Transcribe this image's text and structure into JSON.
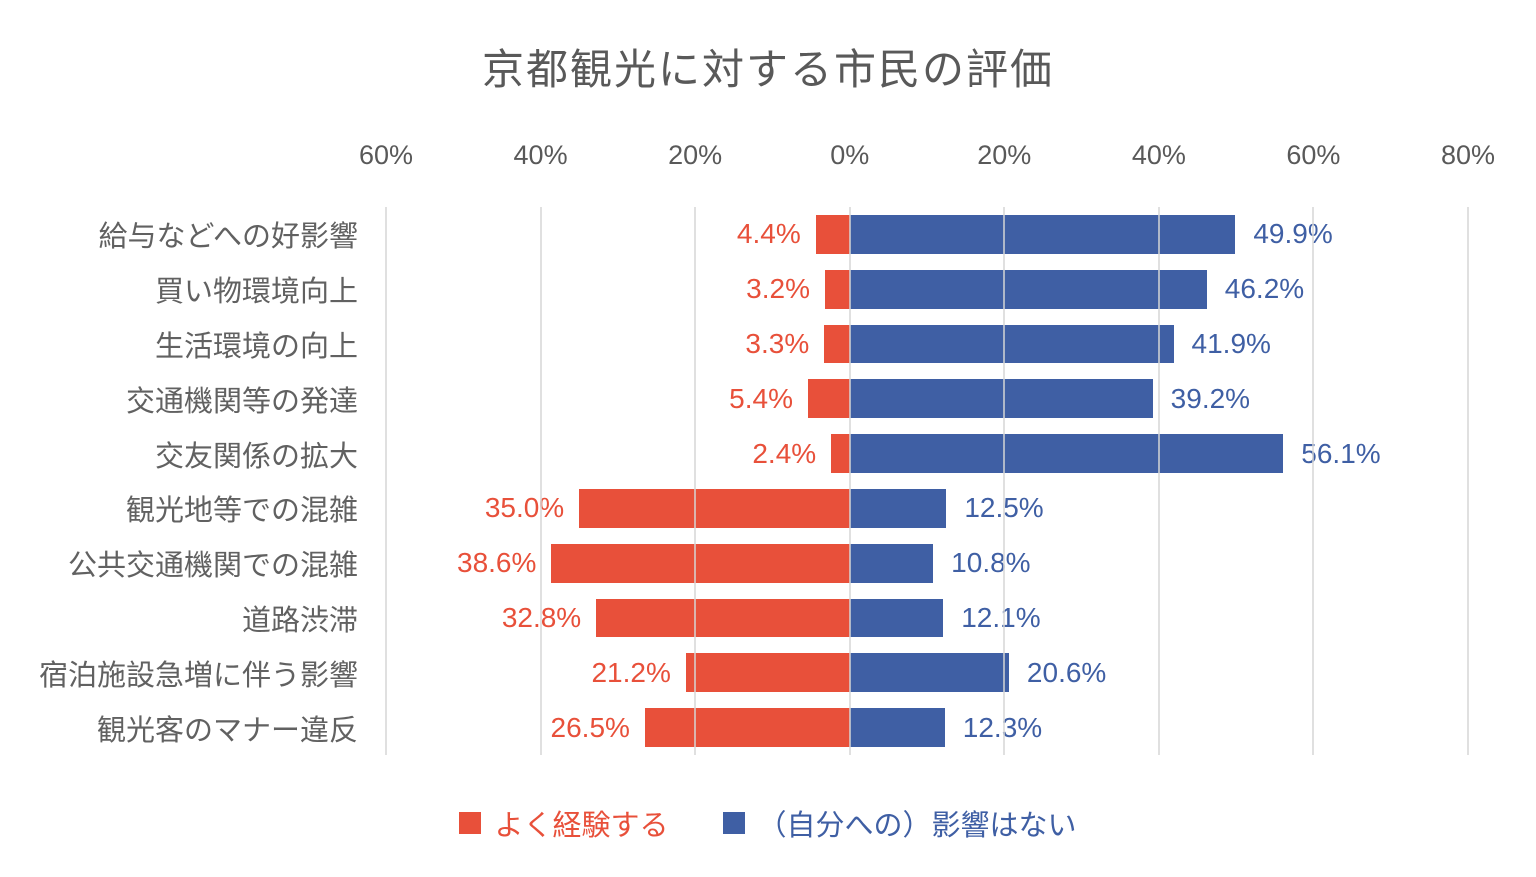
{
  "chart": {
    "title": "京都観光に対する市民の評価",
    "colors": {
      "experience": "#e8503a",
      "no_impact": "#3f5fa4",
      "title_text": "#595959",
      "axis_text": "#595959",
      "category_text": "#616161",
      "gridline": "#d6d6d6"
    },
    "legend": [
      {
        "label": "よく経験する",
        "series": "experience"
      },
      {
        "label": "（自分への）影響はない",
        "series": "no_impact"
      }
    ]
  },
  "chart_data": {
    "type": "bar",
    "orientation": "horizontal-diverging",
    "title": "京都観光に対する市民の評価",
    "categories": [
      "給与などへの好影響",
      "買い物環境向上",
      "生活環境の向上",
      "交通機関等の発達",
      "交友関係の拡大",
      "観光地等での混雑",
      "公共交通機関での混雑",
      "道路渋滞",
      "宿泊施設急増に伴う影響",
      "観光客のマナー違反"
    ],
    "series": [
      {
        "name": "よく経験する",
        "direction": "left",
        "color": "#e8503a",
        "values": [
          4.4,
          3.2,
          3.3,
          5.4,
          2.4,
          35.0,
          38.6,
          32.8,
          21.2,
          26.5
        ]
      },
      {
        "name": "（自分への）影響はない",
        "direction": "right",
        "color": "#3f5fa4",
        "values": [
          49.9,
          46.2,
          41.9,
          39.2,
          56.1,
          12.5,
          10.8,
          12.1,
          20.6,
          12.3
        ]
      }
    ],
    "value_label_format": "one-decimal-percent",
    "x_axis": {
      "min": -60,
      "max": 80,
      "ticks": [
        -60,
        -40,
        -20,
        0,
        20,
        40,
        60,
        80
      ],
      "tick_labels": [
        "60%",
        "40%",
        "20%",
        "0%",
        "20%",
        "40%",
        "60%",
        "80%"
      ],
      "grid": true
    },
    "legend_position": "bottom"
  }
}
